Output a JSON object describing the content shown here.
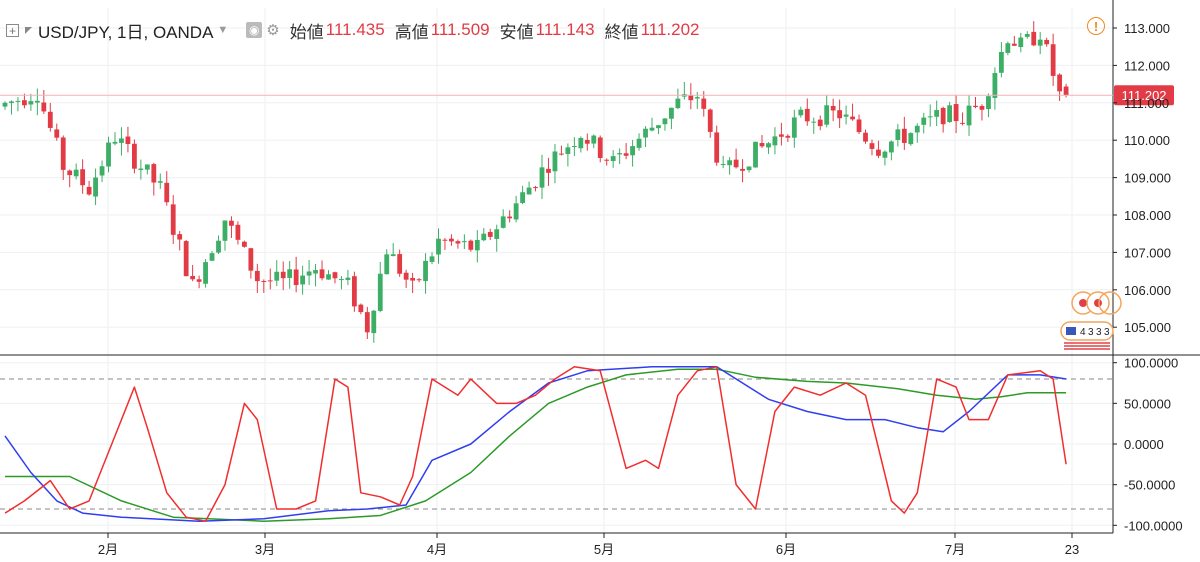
{
  "legend": {
    "symbol": "USD/JPY, 1日, OANDA",
    "open_label": "始値",
    "open_value": "111.435",
    "high_label": "高値",
    "high_value": "111.509",
    "low_label": "安値",
    "low_value": "111.143",
    "close_label": "終値",
    "close_value": "111.202"
  },
  "colors": {
    "up": "#3cae66",
    "down": "#e23b46",
    "stoch_fast": "#f22d2d",
    "stoch_signal": "#2f3ef0",
    "stoch_slow": "#2d9a28",
    "price_tag": "#e23b46",
    "alert": "#f08a24"
  },
  "icons": [
    "add-box-icon",
    "flag-icon",
    "caret-down-icon",
    "eye-icon",
    "gear-icon",
    "alert-icon",
    "event-marker-icon",
    "us-flag-icon"
  ],
  "chart_data": [
    {
      "type": "candlestick",
      "title": "USD/JPY, 1日, OANDA",
      "y_ticks": [
        "113.000",
        "112.000",
        "111.000",
        "110.000",
        "109.000",
        "108.000",
        "107.000",
        "106.000",
        "105.000"
      ],
      "ylim": [
        104.4,
        113.5
      ],
      "x_ticks": [
        "2月",
        "3月",
        "4月",
        "5月",
        "6月",
        "7月",
        "23"
      ],
      "last_price": "111.202",
      "last_bar": {
        "open": 111.435,
        "high": 111.509,
        "low": 111.143,
        "close": 111.202
      },
      "close_path": [
        [
          0,
          110.9
        ],
        [
          6,
          111.3
        ],
        [
          10,
          109.3
        ],
        [
          14,
          108.7
        ],
        [
          18,
          110.1
        ],
        [
          21,
          109.5
        ],
        [
          25,
          108.7
        ],
        [
          30,
          106.1
        ],
        [
          35,
          107.9
        ],
        [
          40,
          106.3
        ],
        [
          44,
          106.2
        ],
        [
          49,
          106.6
        ],
        [
          54,
          106.1
        ],
        [
          57,
          105.0
        ],
        [
          60,
          107.1
        ],
        [
          64,
          106.0
        ],
        [
          68,
          107.3
        ],
        [
          74,
          107.1
        ],
        [
          80,
          108.3
        ],
        [
          85,
          109.4
        ],
        [
          90,
          110.2
        ],
        [
          95,
          109.4
        ],
        [
          100,
          110.2
        ],
        [
          105,
          111.0
        ],
        [
          108,
          111.2
        ],
        [
          112,
          109.1
        ],
        [
          118,
          109.8
        ],
        [
          124,
          110.6
        ],
        [
          130,
          110.7
        ],
        [
          136,
          109.8
        ],
        [
          141,
          110.2
        ],
        [
          146,
          110.7
        ],
        [
          149,
          110.6
        ],
        [
          152,
          111.0
        ],
        [
          156,
          112.8
        ],
        [
          158,
          112.5
        ],
        [
          161,
          112.9
        ],
        [
          164,
          111.2
        ]
      ],
      "n_bars": 165,
      "events": [
        "4",
        "3",
        "3",
        "3"
      ]
    },
    {
      "type": "line",
      "title": "",
      "y_ticks": [
        "100.0000",
        "50.0000",
        "0.0000",
        "-50.0000",
        "-100.0000"
      ],
      "ylim": [
        -110,
        110
      ],
      "levels": [
        80,
        -80
      ],
      "series": [
        {
          "values": [
            [
              0,
              -85
            ],
            [
              3,
              -70
            ],
            [
              7,
              -45
            ],
            [
              10,
              -80
            ],
            [
              13,
              -70
            ],
            [
              17,
              10
            ],
            [
              20,
              70
            ],
            [
              22,
              20
            ],
            [
              25,
              -60
            ],
            [
              28,
              -90
            ],
            [
              31,
              -95
            ],
            [
              34,
              -50
            ],
            [
              37,
              50
            ],
            [
              39,
              30
            ],
            [
              42,
              -80
            ],
            [
              45,
              -80
            ],
            [
              48,
              -70
            ],
            [
              51,
              80
            ],
            [
              53,
              70
            ],
            [
              55,
              -60
            ],
            [
              58,
              -65
            ],
            [
              61,
              -75
            ],
            [
              63,
              -40
            ],
            [
              66,
              80
            ],
            [
              70,
              60
            ],
            [
              72,
              80
            ],
            [
              76,
              50
            ],
            [
              79,
              50
            ],
            [
              82,
              60
            ],
            [
              85,
              80
            ],
            [
              88,
              95
            ],
            [
              92,
              90
            ],
            [
              96,
              -30
            ],
            [
              99,
              -20
            ],
            [
              101,
              -30
            ],
            [
              104,
              60
            ],
            [
              107,
              90
            ],
            [
              110,
              95
            ],
            [
              113,
              -50
            ],
            [
              116,
              -80
            ],
            [
              119,
              40
            ],
            [
              122,
              70
            ],
            [
              126,
              60
            ],
            [
              130,
              75
            ],
            [
              133,
              60
            ],
            [
              137,
              -70
            ],
            [
              139,
              -85
            ],
            [
              141,
              -60
            ],
            [
              144,
              80
            ],
            [
              147,
              70
            ],
            [
              149,
              30
            ],
            [
              152,
              30
            ],
            [
              155,
              85
            ],
            [
              160,
              90
            ],
            [
              162,
              80
            ],
            [
              164,
              -25
            ]
          ]
        },
        {
          "values": [
            [
              0,
              10
            ],
            [
              4,
              -35
            ],
            [
              8,
              -70
            ],
            [
              12,
              -85
            ],
            [
              18,
              -90
            ],
            [
              30,
              -95
            ],
            [
              40,
              -92
            ],
            [
              50,
              -82
            ],
            [
              56,
              -80
            ],
            [
              62,
              -75
            ],
            [
              66,
              -20
            ],
            [
              72,
              0
            ],
            [
              78,
              40
            ],
            [
              84,
              75
            ],
            [
              90,
              90
            ],
            [
              100,
              95
            ],
            [
              110,
              95
            ],
            [
              118,
              55
            ],
            [
              124,
              40
            ],
            [
              130,
              30
            ],
            [
              136,
              30
            ],
            [
              141,
              20
            ],
            [
              145,
              15
            ],
            [
              149,
              40
            ],
            [
              155,
              85
            ],
            [
              160,
              85
            ],
            [
              164,
              80
            ]
          ]
        },
        {
          "values": [
            [
              0,
              -40
            ],
            [
              10,
              -40
            ],
            [
              18,
              -70
            ],
            [
              26,
              -90
            ],
            [
              40,
              -95
            ],
            [
              50,
              -92
            ],
            [
              58,
              -88
            ],
            [
              65,
              -70
            ],
            [
              72,
              -35
            ],
            [
              78,
              10
            ],
            [
              84,
              50
            ],
            [
              90,
              70
            ],
            [
              96,
              85
            ],
            [
              104,
              92
            ],
            [
              110,
              92
            ],
            [
              116,
              82
            ],
            [
              124,
              77
            ],
            [
              130,
              75
            ],
            [
              138,
              68
            ],
            [
              144,
              60
            ],
            [
              150,
              55
            ],
            [
              154,
              58
            ],
            [
              158,
              63
            ],
            [
              164,
              63
            ]
          ]
        }
      ]
    }
  ]
}
